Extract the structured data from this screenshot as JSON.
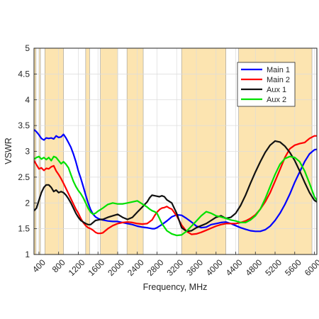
{
  "chart_data": {
    "type": "line",
    "title": "",
    "xlabel": "Frequency, MHz",
    "ylabel": "VSWR",
    "xlim": [
      300,
      6050
    ],
    "ylim": [
      1,
      5
    ],
    "x_ticks": [
      400,
      800,
      1200,
      1600,
      2000,
      2400,
      2800,
      3200,
      3600,
      4000,
      4400,
      4800,
      5200,
      5600,
      6000
    ],
    "x_tick_labels": [
      "400",
      "800",
      "1200",
      "1600",
      "2000",
      "2400",
      "2800",
      "3200",
      "3600",
      "4000",
      "4400",
      "4800",
      "5200",
      "5600",
      "6000"
    ],
    "y_ticks": [
      1,
      1.5,
      2,
      2.5,
      3,
      3.5,
      4,
      4.5,
      5
    ],
    "y_tick_labels": [
      "1",
      "1.5",
      "2",
      "2.5",
      "3",
      "3.5",
      "4",
      "4.5",
      "5"
    ],
    "grid": true,
    "legend_position": "top-right",
    "band_color": "#FCE4B0",
    "bands": [
      [
        300,
        340
      ],
      [
        400,
        430
      ],
      [
        520,
        900
      ],
      [
        1350,
        1430
      ],
      [
        1650,
        2000
      ],
      [
        2190,
        2520
      ],
      [
        3300,
        4200
      ],
      [
        4460,
        5950
      ]
    ],
    "series": [
      {
        "name": "Main 1",
        "color": "#0000FF",
        "x": [
          300,
          350,
          400,
          450,
          500,
          550,
          600,
          650,
          700,
          750,
          800,
          850,
          900,
          950,
          1000,
          1050,
          1100,
          1150,
          1200,
          1250,
          1300,
          1350,
          1400,
          1450,
          1500,
          1550,
          1600,
          1650,
          1700,
          1800,
          1900,
          2000,
          2100,
          2200,
          2300,
          2400,
          2500,
          2600,
          2700,
          2750,
          2800,
          2850,
          2900,
          3000,
          3100,
          3200,
          3300,
          3400,
          3500,
          3600,
          3700,
          3800,
          3900,
          4000,
          4100,
          4200,
          4300,
          4400,
          4500,
          4600,
          4700,
          4800,
          4900,
          5000,
          5100,
          5200,
          5300,
          5400,
          5500,
          5600,
          5700,
          5800,
          5900,
          6000,
          6050
        ],
        "y": [
          3.42,
          3.38,
          3.32,
          3.25,
          3.22,
          3.26,
          3.25,
          3.26,
          3.24,
          3.3,
          3.27,
          3.28,
          3.33,
          3.26,
          3.17,
          3.08,
          2.95,
          2.8,
          2.62,
          2.48,
          2.32,
          2.15,
          2.0,
          1.87,
          1.78,
          1.73,
          1.7,
          1.68,
          1.67,
          1.65,
          1.64,
          1.64,
          1.62,
          1.6,
          1.58,
          1.55,
          1.53,
          1.52,
          1.5,
          1.5,
          1.52,
          1.55,
          1.58,
          1.65,
          1.73,
          1.77,
          1.76,
          1.7,
          1.63,
          1.55,
          1.52,
          1.53,
          1.58,
          1.6,
          1.62,
          1.63,
          1.6,
          1.56,
          1.52,
          1.49,
          1.46,
          1.45,
          1.45,
          1.48,
          1.55,
          1.66,
          1.8,
          1.97,
          2.17,
          2.4,
          2.6,
          2.8,
          2.95,
          3.03,
          3.04
        ]
      },
      {
        "name": "Main 2",
        "color": "#FF0000",
        "x": [
          300,
          350,
          400,
          450,
          500,
          550,
          600,
          650,
          700,
          750,
          800,
          850,
          900,
          950,
          1000,
          1050,
          1100,
          1150,
          1200,
          1250,
          1300,
          1350,
          1400,
          1450,
          1500,
          1550,
          1600,
          1650,
          1700,
          1800,
          1900,
          2000,
          2100,
          2200,
          2300,
          2400,
          2500,
          2600,
          2700,
          2750,
          2800,
          2850,
          2900,
          2950,
          3000,
          3050,
          3100,
          3200,
          3300,
          3400,
          3500,
          3600,
          3700,
          3800,
          3900,
          4000,
          4100,
          4200,
          4300,
          4400,
          4500,
          4600,
          4700,
          4800,
          4900,
          5000,
          5100,
          5200,
          5300,
          5400,
          5500,
          5600,
          5700,
          5800,
          5900,
          6000,
          6050
        ],
        "y": [
          2.82,
          2.74,
          2.66,
          2.68,
          2.63,
          2.67,
          2.66,
          2.7,
          2.72,
          2.62,
          2.55,
          2.47,
          2.38,
          2.28,
          2.18,
          2.08,
          1.98,
          1.88,
          1.8,
          1.7,
          1.62,
          1.56,
          1.52,
          1.5,
          1.47,
          1.43,
          1.41,
          1.41,
          1.42,
          1.5,
          1.56,
          1.6,
          1.62,
          1.63,
          1.62,
          1.6,
          1.59,
          1.6,
          1.67,
          1.75,
          1.82,
          1.87,
          1.9,
          1.91,
          1.93,
          1.9,
          1.88,
          1.75,
          1.57,
          1.45,
          1.39,
          1.4,
          1.43,
          1.47,
          1.51,
          1.55,
          1.58,
          1.6,
          1.6,
          1.6,
          1.62,
          1.65,
          1.7,
          1.77,
          1.88,
          2.02,
          2.2,
          2.42,
          2.65,
          2.88,
          3.05,
          3.12,
          3.15,
          3.17,
          3.25,
          3.3,
          3.3
        ]
      },
      {
        "name": "Aux 1",
        "color": "#111111",
        "x": [
          300,
          350,
          400,
          450,
          500,
          550,
          600,
          650,
          700,
          750,
          800,
          850,
          900,
          950,
          1000,
          1050,
          1100,
          1150,
          1200,
          1250,
          1300,
          1350,
          1400,
          1450,
          1500,
          1550,
          1600,
          1650,
          1700,
          1800,
          1900,
          2000,
          2100,
          2200,
          2300,
          2400,
          2500,
          2600,
          2650,
          2700,
          2750,
          2800,
          2850,
          2900,
          2950,
          3000,
          3100,
          3200,
          3300,
          3400,
          3500,
          3600,
          3700,
          3800,
          3900,
          4000,
          4100,
          4200,
          4300,
          4400,
          4500,
          4600,
          4700,
          4800,
          4900,
          5000,
          5100,
          5200,
          5300,
          5400,
          5500,
          5600,
          5700,
          5800,
          5900,
          6000,
          6050
        ],
        "y": [
          1.85,
          1.9,
          2.05,
          2.2,
          2.3,
          2.35,
          2.35,
          2.3,
          2.22,
          2.25,
          2.2,
          2.22,
          2.2,
          2.15,
          2.08,
          2.0,
          1.9,
          1.8,
          1.72,
          1.66,
          1.63,
          1.6,
          1.58,
          1.58,
          1.62,
          1.66,
          1.67,
          1.68,
          1.68,
          1.72,
          1.75,
          1.78,
          1.72,
          1.68,
          1.72,
          1.82,
          1.92,
          2.02,
          2.1,
          2.15,
          2.14,
          2.13,
          2.12,
          2.14,
          2.12,
          2.06,
          2.0,
          1.8,
          1.52,
          1.45,
          1.46,
          1.52,
          1.56,
          1.6,
          1.66,
          1.72,
          1.75,
          1.7,
          1.72,
          1.8,
          1.95,
          2.15,
          2.38,
          2.6,
          2.8,
          2.98,
          3.12,
          3.2,
          3.18,
          3.1,
          2.98,
          2.82,
          2.62,
          2.4,
          2.2,
          2.05,
          2.02
        ]
      },
      {
        "name": "Aux 2",
        "color": "#00E000",
        "x": [
          300,
          350,
          400,
          450,
          500,
          550,
          600,
          650,
          700,
          750,
          800,
          850,
          900,
          950,
          1000,
          1050,
          1100,
          1150,
          1200,
          1250,
          1300,
          1350,
          1400,
          1450,
          1500,
          1550,
          1600,
          1650,
          1700,
          1800,
          1900,
          2000,
          2100,
          2200,
          2300,
          2400,
          2500,
          2600,
          2650,
          2700,
          2750,
          2800,
          2900,
          3000,
          3100,
          3200,
          3300,
          3400,
          3500,
          3600,
          3700,
          3800,
          3900,
          4000,
          4100,
          4200,
          4300,
          4400,
          4500,
          4600,
          4700,
          4800,
          4900,
          5000,
          5100,
          5200,
          5300,
          5400,
          5500,
          5600,
          5700,
          5800,
          5900,
          6000,
          6050
        ],
        "y": [
          2.85,
          2.88,
          2.9,
          2.85,
          2.88,
          2.84,
          2.88,
          2.82,
          2.9,
          2.88,
          2.82,
          2.76,
          2.8,
          2.75,
          2.68,
          2.55,
          2.42,
          2.32,
          2.24,
          2.18,
          2.1,
          2.0,
          1.9,
          1.82,
          1.78,
          1.8,
          1.84,
          1.87,
          1.9,
          1.97,
          2.0,
          1.98,
          1.98,
          2.0,
          2.02,
          2.04,
          1.98,
          1.92,
          1.88,
          1.85,
          1.83,
          1.8,
          1.6,
          1.46,
          1.4,
          1.37,
          1.38,
          1.45,
          1.55,
          1.65,
          1.75,
          1.83,
          1.8,
          1.75,
          1.73,
          1.7,
          1.67,
          1.65,
          1.62,
          1.62,
          1.67,
          1.75,
          1.88,
          2.08,
          2.32,
          2.55,
          2.75,
          2.86,
          2.9,
          2.88,
          2.8,
          2.62,
          2.38,
          2.12,
          2.05
        ]
      }
    ]
  }
}
